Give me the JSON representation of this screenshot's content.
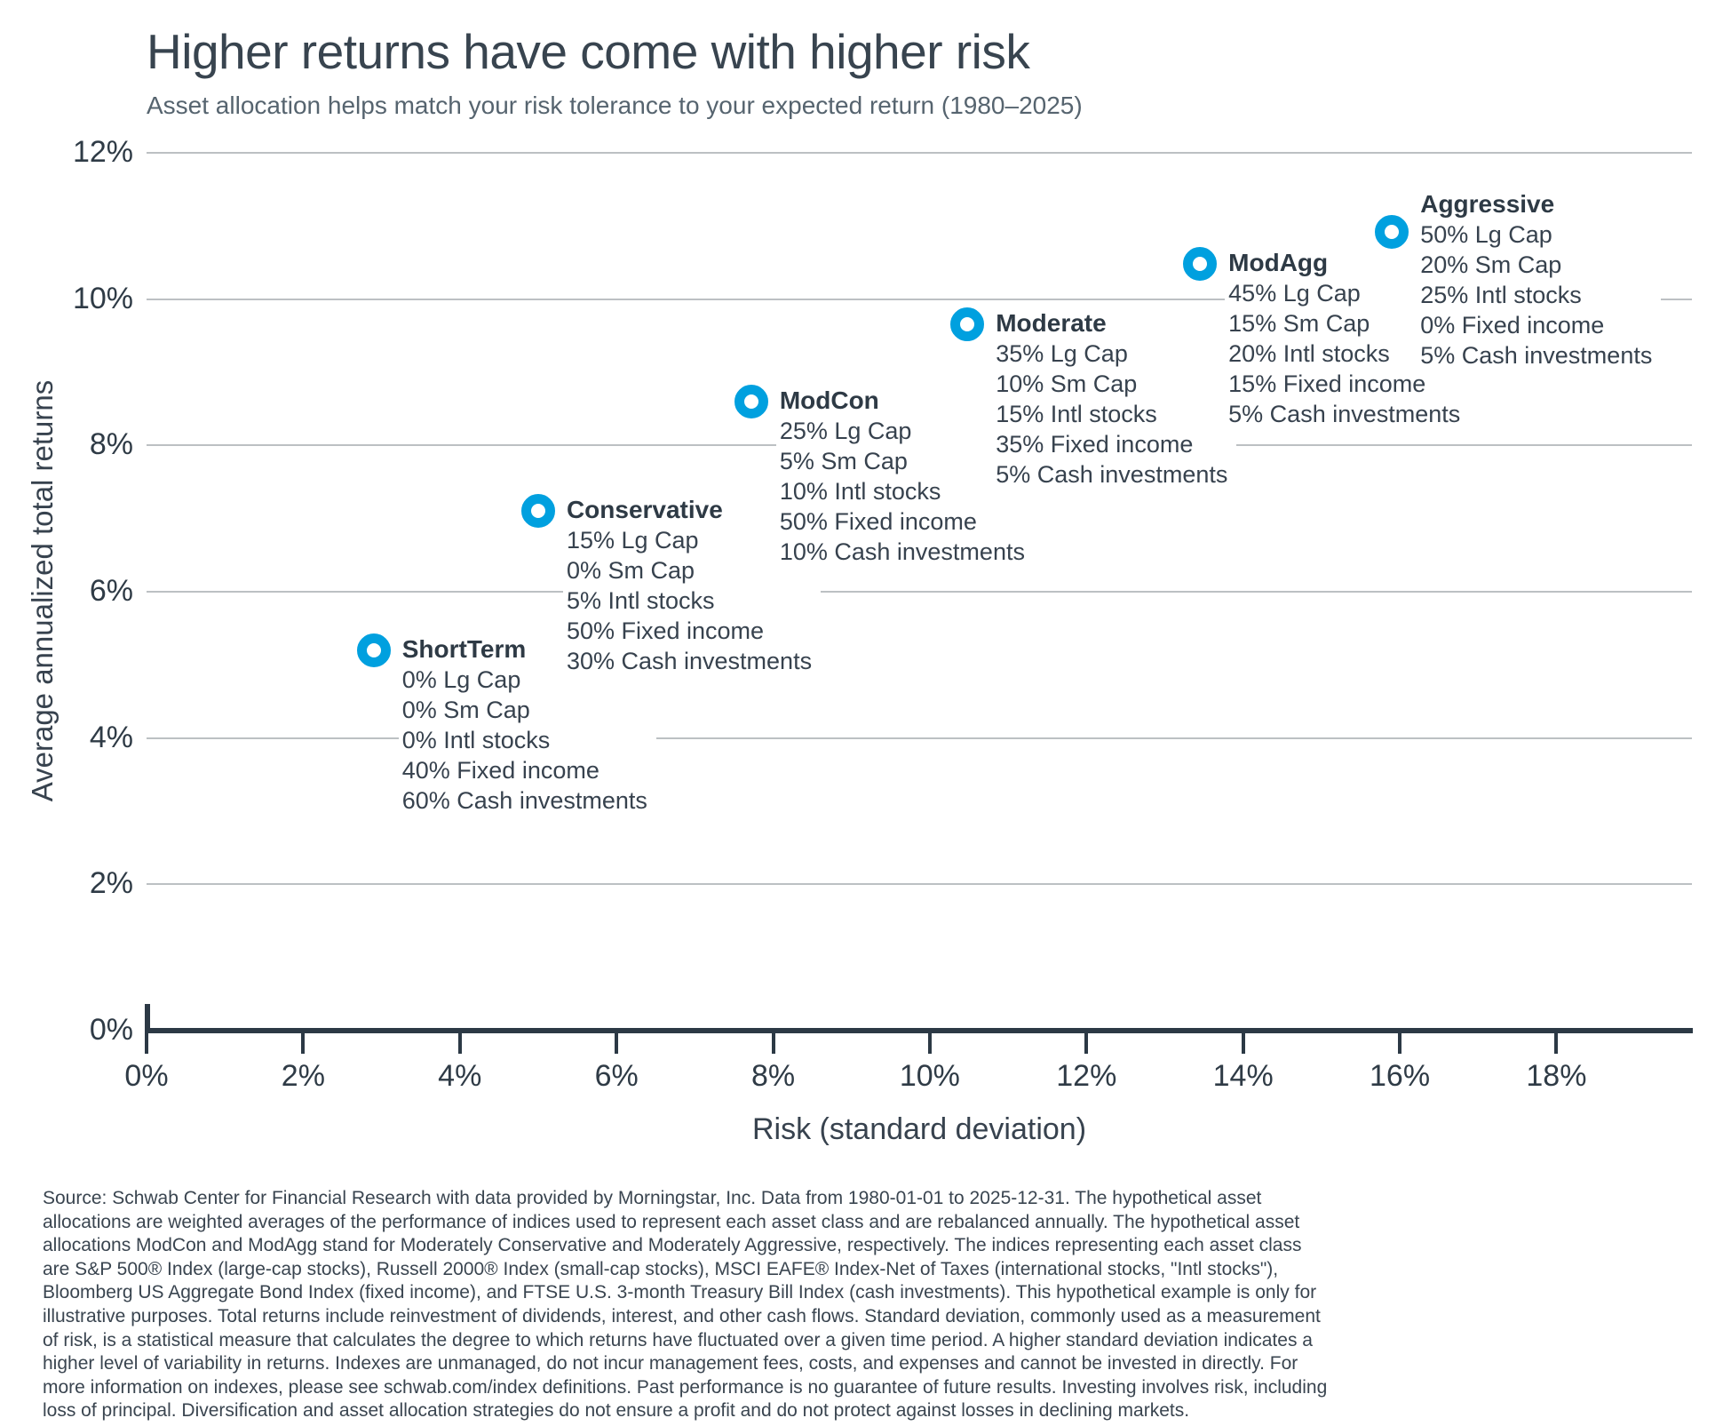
{
  "footer": {
    "text": "Source: Schwab Center for Financial Research with data provided by Morningstar, Inc. Data from 1980-01-01 to 2025-12-31. The hypothetical asset allocations are weighted averages of the performance of indices used to represent each asset class and are rebalanced annually. The hypothetical asset allocations ModCon and ModAgg stand for Moderately Conservative and Moderately Aggressive, respectively. The indices representing each asset class are S&P 500® Index (large-cap stocks), Russell 2000® Index (small-cap stocks), MSCI EAFE® Index-Net of Taxes (international stocks, \"Intl stocks\"), Bloomberg US Aggregate Bond Index (fixed income), and FTSE U.S. 3-month Treasury Bill Index (cash investments). This hypothetical example is only for illustrative purposes. Total returns include reinvestment of dividends, interest, and other cash flows. Standard deviation, commonly used as a measurement of risk, is a statistical measure that calculates the degree to which returns have fluctuated over a given time period. A higher standard deviation indicates a higher level of variability in returns. Indexes are unmanaged, do not incur management fees, costs, and expenses and cannot be invested in directly. For more information on indexes, please see schwab.com/index definitions. Past performance is no guarantee of future results. Investing involves risk, including loss of principal. Diversification and asset allocation strategies do not ensure a profit and do not protect against losses in declining markets."
  },
  "chart_data": {
    "type": "scatter",
    "title": "Higher returns have come with higher risk",
    "subtitle": "Asset allocation helps match your risk tolerance to your expected return (1980–2025)",
    "xlabel": "Risk (standard deviation)",
    "ylabel": "Average annualized total returns",
    "xlim": [
      0,
      19.73
    ],
    "ylim": [
      0,
      12
    ],
    "x_ticks": [
      0,
      2,
      4,
      6,
      8,
      10,
      12,
      14,
      16,
      18
    ],
    "y_ticks": [
      0,
      2,
      4,
      6,
      8,
      10,
      12
    ],
    "tick_suffix": "%",
    "grid": "horizontal gridlines every 2%",
    "legend": "none",
    "point_color": "#00A0DF",
    "points": [
      {
        "name": "ShortTerm",
        "x": 2.9,
        "y": 5.2,
        "allocations": [
          "0% Lg Cap",
          "0% Sm Cap",
          "0% Intl stocks",
          "40% Fixed income",
          "60% Cash investments"
        ],
        "label_valign": "center"
      },
      {
        "name": "Conservative",
        "x": 5.0,
        "y": 7.1,
        "allocations": [
          "15% Lg Cap",
          "0% Sm Cap",
          "5% Intl stocks",
          "50% Fixed income",
          "30% Cash investments"
        ],
        "label_valign": "center"
      },
      {
        "name": "ModCon",
        "x": 7.72,
        "y": 8.6,
        "allocations": [
          "25% Lg Cap",
          "5% Sm Cap",
          "10% Intl stocks",
          "50% Fixed income",
          "10% Cash investments"
        ],
        "label_valign": "center"
      },
      {
        "name": "Moderate",
        "x": 10.48,
        "y": 9.65,
        "allocations": [
          "35% Lg Cap",
          "10% Sm Cap",
          "15% Intl stocks",
          "35% Fixed income",
          "5% Cash investments"
        ],
        "label_valign": "center"
      },
      {
        "name": "ModAgg",
        "x": 13.45,
        "y": 10.48,
        "allocations": [
          "45% Lg Cap",
          "15% Sm Cap",
          "20% Intl stocks",
          "15% Fixed income",
          "5% Cash investments"
        ],
        "label_valign": "center"
      },
      {
        "name": "Aggressive",
        "x": 15.9,
        "y": 10.92,
        "allocations": [
          "50% Lg Cap",
          "20% Sm Cap",
          "25% Intl stocks",
          "0% Fixed income",
          "5% Cash investments"
        ],
        "label_valign": "above"
      }
    ]
  }
}
